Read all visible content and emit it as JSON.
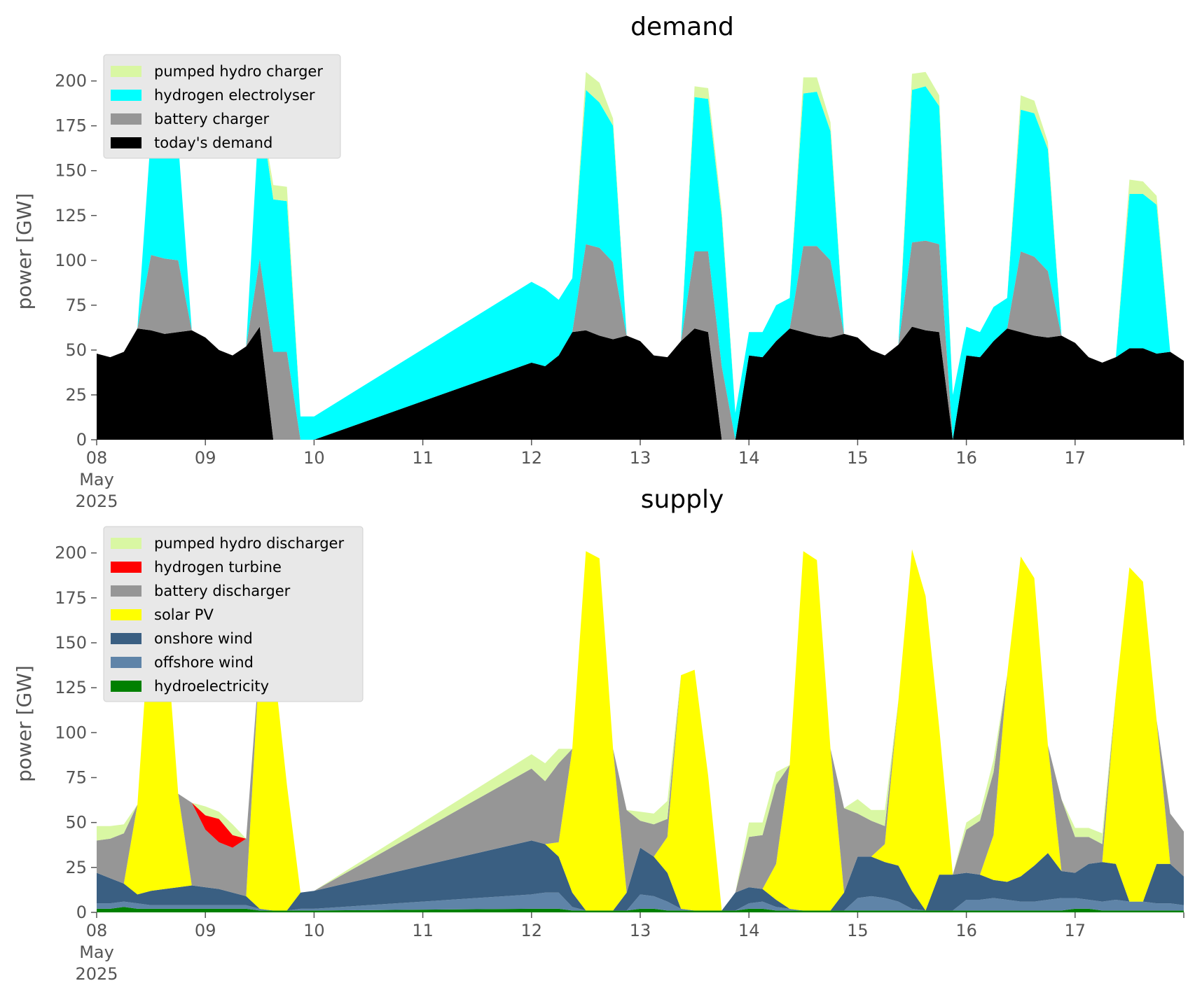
{
  "chart_data": [
    {
      "type": "area",
      "stacked": true,
      "title": "demand",
      "ylabel": "power [GW]",
      "xlim": [
        0,
        10
      ],
      "ylim": [
        0,
        210
      ],
      "yticks": [
        0,
        25,
        50,
        75,
        100,
        125,
        150,
        175,
        200
      ],
      "x_tick_labels": [
        "08\nMay\n2025",
        "09",
        "10",
        "11",
        "12",
        "13",
        "14",
        "15",
        "16",
        "17"
      ],
      "grid": false,
      "legend": "top-left",
      "x_days": [
        0,
        0.125,
        0.25,
        0.375,
        0.5,
        0.625,
        0.75,
        0.875,
        1,
        1.125,
        1.25,
        1.375,
        1.5,
        1.625,
        1.75,
        1.875,
        2,
        4,
        4.125,
        4.25,
        4.375,
        4.5,
        4.625,
        4.75,
        4.875,
        5,
        5.125,
        5.25,
        5.375,
        5.5,
        5.625,
        5.75,
        5.875,
        6,
        6.125,
        6.25,
        6.375,
        6.5,
        6.625,
        6.75,
        6.875,
        7,
        7.125,
        7.25,
        7.375,
        7.5,
        7.625,
        7.75,
        7.875,
        8,
        8.125,
        8.25,
        8.375,
        8.5,
        8.625,
        8.75,
        8.875,
        9,
        9.125,
        9.25,
        9.375,
        9.5,
        9.625,
        9.75,
        9.875,
        10
      ],
      "series": [
        {
          "name": "today's demand",
          "color": "#000000",
          "values": [
            48,
            46,
            49,
            62,
            61,
            59,
            60,
            61,
            57,
            50,
            47,
            52,
            63,
            0,
            0,
            0,
            0,
            43,
            41,
            47,
            60,
            61,
            58,
            56,
            58,
            55,
            47,
            46,
            55,
            62,
            60,
            0,
            0,
            47,
            46,
            55,
            62,
            60,
            58,
            57,
            59,
            57,
            50,
            47,
            53,
            63,
            61,
            60,
            0,
            47,
            46,
            55,
            62,
            60,
            58,
            57,
            58,
            54,
            46,
            43,
            46,
            51,
            51,
            48,
            49,
            44
          ]
        },
        {
          "name": "battery charger",
          "color": "#969696",
          "values": [
            0,
            0,
            0,
            0,
            42,
            42,
            40,
            0,
            0,
            0,
            0,
            0,
            38,
            49,
            49,
            0,
            0,
            0,
            0,
            0,
            0,
            48,
            49,
            43,
            0,
            0,
            0,
            0,
            0,
            43,
            45,
            41,
            0,
            0,
            0,
            0,
            0,
            48,
            50,
            43,
            0,
            0,
            0,
            0,
            0,
            47,
            50,
            49,
            0,
            0,
            0,
            0,
            0,
            45,
            44,
            37,
            0,
            0,
            0,
            0,
            0,
            0,
            0,
            0,
            0,
            0
          ]
        },
        {
          "name": "hydrogen electrolyser",
          "color": "#00ffff",
          "values": [
            0,
            0,
            0,
            0,
            68,
            69,
            66,
            0,
            0,
            0,
            0,
            0,
            86,
            85,
            84,
            13,
            13,
            45,
            43,
            31,
            30,
            86,
            81,
            76,
            0,
            0,
            0,
            0,
            0,
            86,
            85,
            83,
            15,
            13,
            14,
            20,
            17,
            85,
            86,
            72,
            0,
            0,
            0,
            0,
            0,
            85,
            86,
            77,
            25,
            16,
            14,
            19,
            17,
            79,
            80,
            68,
            0,
            0,
            0,
            0,
            0,
            86,
            86,
            83,
            0,
            0
          ]
        },
        {
          "name": "pumped hydro charger",
          "color": "#d9f7a3",
          "values": [
            0,
            0,
            0,
            0,
            0,
            0,
            0,
            0,
            0,
            0,
            0,
            0,
            0,
            8,
            8,
            0,
            0,
            0,
            0,
            0,
            0,
            10,
            11,
            4,
            0,
            0,
            0,
            0,
            0,
            6,
            6,
            4,
            0,
            0,
            0,
            0,
            0,
            9,
            8,
            5,
            0,
            0,
            0,
            0,
            0,
            9,
            8,
            6,
            0,
            0,
            0,
            0,
            0,
            8,
            7,
            4,
            0,
            0,
            0,
            0,
            0,
            8,
            7,
            5,
            0,
            0
          ]
        }
      ]
    },
    {
      "type": "area",
      "stacked": true,
      "title": "supply",
      "ylabel": "power [GW]",
      "xlim": [
        0,
        10
      ],
      "ylim": [
        0,
        210
      ],
      "yticks": [
        0,
        25,
        50,
        75,
        100,
        125,
        150,
        175,
        200
      ],
      "x_tick_labels": [
        "08\nMay\n2025",
        "09",
        "10",
        "11",
        "12",
        "13",
        "14",
        "15",
        "16",
        "17"
      ],
      "grid": false,
      "legend": "top-left",
      "x_days": [
        0,
        0.125,
        0.25,
        0.375,
        0.5,
        0.625,
        0.75,
        0.875,
        1,
        1.125,
        1.25,
        1.375,
        1.5,
        1.625,
        1.75,
        1.875,
        2,
        4,
        4.125,
        4.25,
        4.375,
        4.5,
        4.625,
        4.75,
        4.875,
        5,
        5.125,
        5.25,
        5.375,
        5.5,
        5.625,
        5.75,
        5.875,
        6,
        6.125,
        6.25,
        6.375,
        6.5,
        6.625,
        6.75,
        6.875,
        7,
        7.125,
        7.25,
        7.375,
        7.5,
        7.625,
        7.75,
        7.875,
        8,
        8.125,
        8.25,
        8.375,
        8.5,
        8.625,
        8.75,
        8.875,
        9,
        9.125,
        9.25,
        9.375,
        9.5,
        9.625,
        9.75,
        9.875,
        10
      ],
      "series": [
        {
          "name": "hydroelectricity",
          "color": "#008000",
          "values": [
            2,
            2,
            3,
            2,
            2,
            2,
            2,
            2,
            2,
            2,
            2,
            2,
            1,
            1,
            1,
            1,
            1,
            2,
            2,
            2,
            1,
            1,
            1,
            1,
            1,
            2,
            2,
            1,
            1,
            1,
            1,
            1,
            1,
            2,
            2,
            1,
            1,
            1,
            1,
            1,
            1,
            1,
            1,
            1,
            1,
            1,
            1,
            1,
            1,
            1,
            1,
            1,
            1,
            1,
            1,
            1,
            1,
            2,
            2,
            1,
            1,
            1,
            1,
            1,
            1,
            1
          ]
        },
        {
          "name": "offshore wind",
          "color": "#5f84a8",
          "values": [
            3,
            3,
            3,
            3,
            2,
            2,
            2,
            2,
            2,
            2,
            2,
            2,
            1,
            0,
            0,
            1,
            1,
            8,
            9,
            9,
            2,
            0,
            0,
            0,
            0,
            8,
            7,
            5,
            1,
            0,
            0,
            0,
            0,
            3,
            4,
            2,
            1,
            0,
            0,
            0,
            0,
            7,
            8,
            7,
            5,
            1,
            0,
            0,
            0,
            6,
            6,
            7,
            6,
            5,
            5,
            6,
            7,
            6,
            5,
            5,
            6,
            5,
            5,
            4,
            4,
            3
          ]
        },
        {
          "name": "onshore wind",
          "color": "#3a5f82",
          "values": [
            17,
            14,
            10,
            5,
            8,
            9,
            10,
            11,
            10,
            9,
            7,
            5,
            0,
            0,
            0,
            9,
            10,
            30,
            27,
            20,
            8,
            0,
            0,
            0,
            10,
            26,
            22,
            16,
            0,
            0,
            0,
            0,
            10,
            9,
            7,
            4,
            0,
            0,
            0,
            0,
            10,
            23,
            22,
            20,
            20,
            10,
            0,
            20,
            20,
            15,
            14,
            10,
            10,
            14,
            20,
            26,
            15,
            14,
            20,
            22,
            20,
            0,
            0,
            22,
            22,
            16
          ]
        },
        {
          "name": "solar PV",
          "color": "#ffff00",
          "values": [
            0,
            0,
            0,
            50,
            160,
            155,
            52,
            0,
            0,
            0,
            0,
            0,
            140,
            140,
            70,
            0,
            0,
            0,
            0,
            8,
            80,
            200,
            196,
            90,
            0,
            0,
            0,
            20,
            130,
            134,
            75,
            0,
            0,
            0,
            0,
            20,
            80,
            200,
            195,
            90,
            0,
            0,
            0,
            10,
            92,
            190,
            175,
            82,
            0,
            0,
            0,
            25,
            115,
            178,
            160,
            60,
            0,
            0,
            0,
            0,
            94,
            186,
            178,
            80,
            0,
            0
          ]
        },
        {
          "name": "battery discharger",
          "color": "#969696",
          "values": [
            18,
            22,
            28,
            0,
            0,
            0,
            0,
            46,
            32,
            26,
            25,
            32,
            0,
            0,
            0,
            0,
            0,
            40,
            35,
            44,
            0,
            0,
            0,
            0,
            46,
            15,
            18,
            10,
            0,
            0,
            0,
            0,
            0,
            28,
            30,
            44,
            0,
            0,
            0,
            0,
            47,
            24,
            20,
            10,
            0,
            0,
            0,
            0,
            0,
            24,
            30,
            35,
            0,
            0,
            0,
            0,
            40,
            20,
            15,
            10,
            0,
            0,
            0,
            0,
            28,
            25
          ]
        },
        {
          "name": "hydrogen turbine",
          "color": "#ff0000",
          "values": [
            0,
            0,
            0,
            0,
            0,
            0,
            0,
            0,
            8,
            13,
            7,
            0,
            0,
            0,
            0,
            0,
            0,
            0,
            0,
            0,
            0,
            0,
            0,
            0,
            0,
            0,
            0,
            0,
            0,
            0,
            0,
            0,
            0,
            0,
            0,
            0,
            0,
            0,
            0,
            0,
            0,
            0,
            0,
            0,
            0,
            0,
            0,
            0,
            0,
            0,
            0,
            0,
            0,
            0,
            0,
            0,
            0,
            0,
            0,
            0,
            0,
            0,
            0,
            0,
            0,
            0
          ]
        },
        {
          "name": "pumped hydro discharger",
          "color": "#d9f7a3",
          "values": [
            8,
            7,
            5,
            0,
            0,
            0,
            0,
            0,
            5,
            4,
            6,
            0,
            0,
            0,
            0,
            0,
            0,
            8,
            10,
            8,
            0,
            0,
            0,
            0,
            0,
            5,
            6,
            10,
            0,
            0,
            0,
            0,
            0,
            8,
            7,
            7,
            0,
            0,
            0,
            0,
            0,
            8,
            6,
            9,
            0,
            0,
            0,
            0,
            0,
            4,
            4,
            7,
            0,
            0,
            0,
            0,
            0,
            5,
            5,
            6,
            0,
            0,
            0,
            0,
            0,
            0
          ]
        }
      ]
    }
  ]
}
